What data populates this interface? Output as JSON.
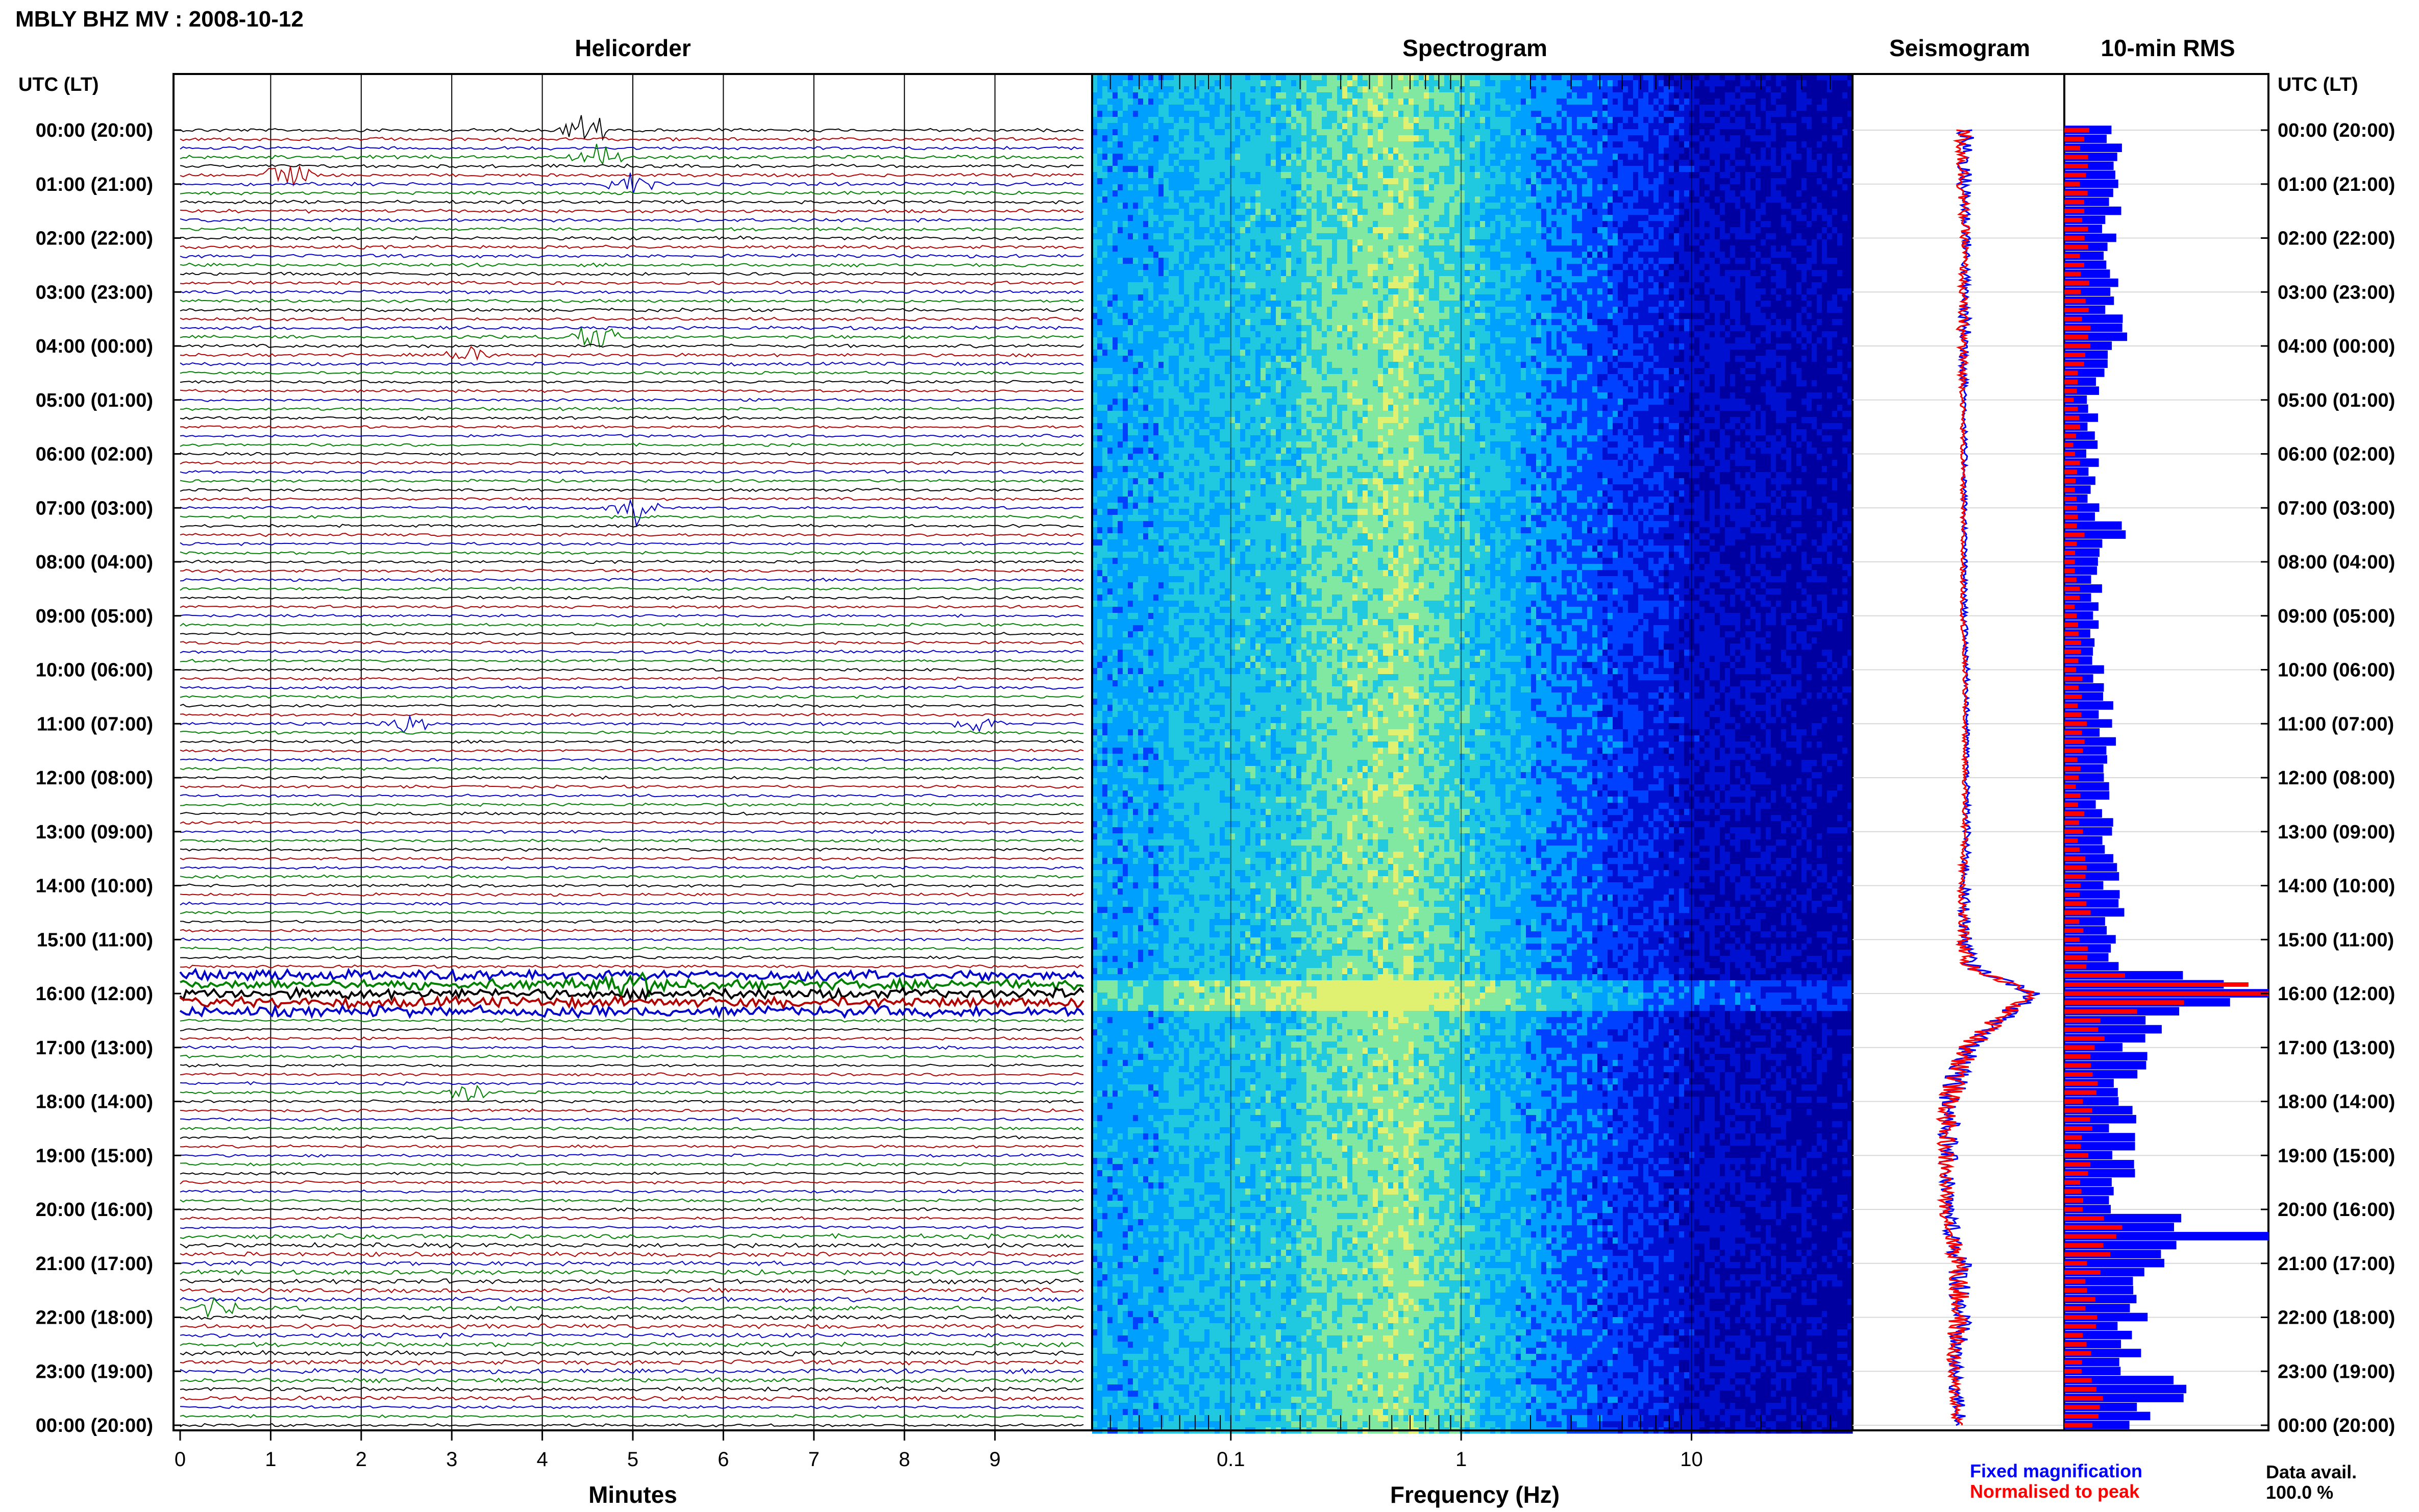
{
  "title": "MBLY BHZ MV : 2008-10-12",
  "time_axis_header_left": "UTC (LT)",
  "time_axis_header_right": "UTC (LT)",
  "time_labels": [
    "00:00 (20:00)",
    "01:00 (21:00)",
    "02:00 (22:00)",
    "03:00 (23:00)",
    "04:00 (00:00)",
    "05:00 (01:00)",
    "06:00 (02:00)",
    "07:00 (03:00)",
    "08:00 (04:00)",
    "09:00 (05:00)",
    "10:00 (06:00)",
    "11:00 (07:00)",
    "12:00 (08:00)",
    "13:00 (09:00)",
    "14:00 (10:00)",
    "15:00 (11:00)",
    "16:00 (12:00)",
    "17:00 (13:00)",
    "18:00 (14:00)",
    "19:00 (15:00)",
    "20:00 (16:00)",
    "21:00 (17:00)",
    "22:00 (18:00)",
    "23:00 (19:00)",
    "00:00 (20:00)"
  ],
  "legend": {
    "fixed": "Fixed magnification",
    "normalised": "Normalised to peak",
    "fixed_color": "#0000ff",
    "normalised_color": "#ff0000"
  },
  "data_avail_label": "Data avail.",
  "data_avail_value": "100.0 %",
  "chart_data": [
    {
      "type": "line",
      "title": "Helicorder",
      "xlabel": "Minutes",
      "ylabel": "",
      "xlim": [
        0,
        10
      ],
      "x_ticks": [
        "0",
        "1",
        "2",
        "3",
        "4",
        "5",
        "6",
        "7",
        "8",
        "9"
      ],
      "trace_colors": [
        "#000000",
        "#b00000",
        "#0000c8",
        "#008000"
      ],
      "rows_per_hour": 6,
      "events": [
        {
          "hour": 0.0,
          "minute": 4.5,
          "amp": 0.9
        },
        {
          "hour": 0.5,
          "minute": 4.6,
          "amp": 0.5
        },
        {
          "hour": 0.9,
          "minute": 1.2,
          "amp": 0.6
        },
        {
          "hour": 1.0,
          "minute": 5.0,
          "amp": 0.4
        },
        {
          "hour": 3.9,
          "minute": 4.6,
          "amp": 0.5
        },
        {
          "hour": 4.1,
          "minute": 3.2,
          "amp": 0.4
        },
        {
          "hour": 7.0,
          "minute": 5.0,
          "amp": 0.6
        },
        {
          "hour": 11.0,
          "minute": 2.5,
          "amp": 0.4
        },
        {
          "hour": 11.0,
          "minute": 8.8,
          "amp": 0.35
        },
        {
          "hour": 15.9,
          "minute": 5.0,
          "amp": 0.7
        },
        {
          "hour": 17.8,
          "minute": 3.2,
          "amp": 0.4
        },
        {
          "hour": 21.8,
          "minute": 0.4,
          "amp": 0.35
        }
      ]
    },
    {
      "type": "heatmap",
      "title": "Spectrogram",
      "xlabel": "Frequency (Hz)",
      "ylabel": "",
      "x_scale": "log",
      "xlim": [
        0.025,
        50
      ],
      "x_ticks": [
        {
          "value": 0.1,
          "label": "0.1"
        },
        {
          "value": 1,
          "label": "1"
        },
        {
          "value": 10,
          "label": "10"
        }
      ],
      "colormap": [
        "#0000a0",
        "#0010d0",
        "#0040ff",
        "#00a0ff",
        "#20c8e0",
        "#80e8a0",
        "#e0f070"
      ]
    },
    {
      "type": "line",
      "title": "Seismogram",
      "xlabel": "",
      "ylabel": "",
      "series": [
        {
          "name": "Fixed magnification",
          "color": "#0000ff"
        },
        {
          "name": "Normalised to peak",
          "color": "#ff0000"
        }
      ],
      "hours": [
        0,
        1,
        2,
        3,
        4,
        5,
        6,
        7,
        8,
        9,
        10,
        11,
        12,
        13,
        14,
        15,
        15.5,
        16,
        16.5,
        17,
        17.5,
        18,
        19,
        20,
        21,
        22,
        23,
        24
      ],
      "center_offset": [
        0.52,
        0.52,
        0.53,
        0.52,
        0.52,
        0.52,
        0.52,
        0.52,
        0.52,
        0.52,
        0.53,
        0.53,
        0.53,
        0.53,
        0.52,
        0.52,
        0.55,
        0.85,
        0.68,
        0.55,
        0.5,
        0.45,
        0.44,
        0.44,
        0.5,
        0.5,
        0.47,
        0.5
      ],
      "half_width": [
        0.04,
        0.03,
        0.02,
        0.02,
        0.03,
        0.01,
        0.01,
        0.01,
        0.01,
        0.01,
        0.01,
        0.01,
        0.01,
        0.015,
        0.02,
        0.03,
        0.04,
        0.03,
        0.05,
        0.06,
        0.06,
        0.05,
        0.04,
        0.03,
        0.05,
        0.05,
        0.03,
        0.03
      ]
    },
    {
      "type": "bar",
      "title": "10-min RMS",
      "xlabel": "",
      "ylabel": "",
      "series": [
        {
          "name": "Fixed magnification",
          "color": "#0000ff"
        },
        {
          "name": "Normalised to peak",
          "color": "#ff0000"
        }
      ],
      "orientation": "horizontal",
      "hours": [
        0,
        0.5,
        1,
        2,
        3,
        4,
        4.5,
        5,
        6,
        7,
        7.5,
        8,
        9,
        10,
        11,
        12,
        13,
        14,
        15,
        15.5,
        16,
        16.3,
        16.6,
        17,
        18,
        19,
        20,
        20.5,
        21,
        22,
        23,
        23.3,
        24
      ],
      "fixed": [
        0.3,
        0.22,
        0.25,
        0.22,
        0.24,
        0.28,
        0.2,
        0.14,
        0.14,
        0.14,
        0.28,
        0.15,
        0.15,
        0.17,
        0.22,
        0.18,
        0.2,
        0.24,
        0.24,
        0.26,
        1.0,
        0.5,
        0.4,
        0.35,
        0.3,
        0.28,
        0.28,
        0.85,
        0.4,
        0.35,
        0.3,
        0.55,
        0.28
      ],
      "normalised": [
        0.12,
        0.1,
        0.1,
        0.09,
        0.1,
        0.1,
        0.08,
        0.06,
        0.06,
        0.06,
        0.1,
        0.06,
        0.06,
        0.07,
        0.1,
        0.07,
        0.08,
        0.1,
        0.1,
        0.12,
        1.0,
        0.3,
        0.2,
        0.15,
        0.12,
        0.11,
        0.11,
        0.3,
        0.15,
        0.13,
        0.12,
        0.2,
        0.11
      ]
    }
  ]
}
